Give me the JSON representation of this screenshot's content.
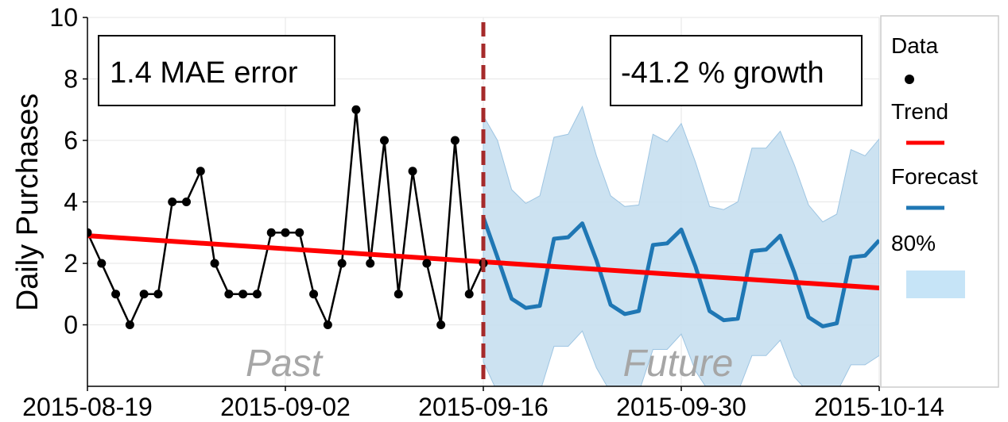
{
  "chart_data": {
    "type": "line",
    "ylabel": "Daily Purchases",
    "ylim": [
      -2,
      10
    ],
    "yticks": [
      "0",
      "2",
      "4",
      "6",
      "8",
      "10"
    ],
    "yticks_values": [
      0,
      2,
      4,
      6,
      8,
      10
    ],
    "xticks": [
      "2015-08-19",
      "2015-09-02",
      "2015-09-16",
      "2015-09-30",
      "2015-10-14"
    ],
    "xlim": [
      "2015-08-19",
      "2015-10-14"
    ],
    "grid": true,
    "annotations": {
      "mae": "1.4 MAE error",
      "growth": "-41.2 % growth",
      "past": "Past",
      "future": "Future"
    },
    "cutoff_date": "2015-09-16",
    "legend": {
      "placement": "right",
      "data": "Data",
      "trend": "Trend",
      "forecast": "Forecast",
      "interval": "80%"
    },
    "colors": {
      "data": "#000000",
      "trend": "#ff0000",
      "forecast": "#1f77b4",
      "interval": "#c6dff0",
      "cutoff": "#a52a2a"
    },
    "series": [
      {
        "name": "Data",
        "x": [
          "2015-08-19",
          "2015-08-20",
          "2015-08-21",
          "2015-08-22",
          "2015-08-23",
          "2015-08-24",
          "2015-08-25",
          "2015-08-26",
          "2015-08-27",
          "2015-08-28",
          "2015-08-29",
          "2015-08-30",
          "2015-08-31",
          "2015-09-01",
          "2015-09-02",
          "2015-09-03",
          "2015-09-04",
          "2015-09-05",
          "2015-09-06",
          "2015-09-07",
          "2015-09-08",
          "2015-09-09",
          "2015-09-10",
          "2015-09-11",
          "2015-09-12",
          "2015-09-13",
          "2015-09-14",
          "2015-09-15",
          "2015-09-16"
        ],
        "values": [
          3,
          2,
          1,
          0,
          1,
          1,
          4,
          4,
          5,
          2,
          1,
          1,
          1,
          3,
          3,
          3,
          1,
          0,
          2,
          7,
          2,
          6,
          1,
          5,
          2,
          0,
          6,
          1,
          2
        ]
      },
      {
        "name": "Trend",
        "x": [
          "2015-08-19",
          "2015-10-14"
        ],
        "values": [
          2.9,
          1.2
        ]
      },
      {
        "name": "Forecast",
        "x": [
          "2015-09-16",
          "2015-09-17",
          "2015-09-18",
          "2015-09-19",
          "2015-09-20",
          "2015-09-21",
          "2015-09-22",
          "2015-09-23",
          "2015-09-24",
          "2015-09-25",
          "2015-09-26",
          "2015-09-27",
          "2015-09-28",
          "2015-09-29",
          "2015-09-30",
          "2015-10-01",
          "2015-10-02",
          "2015-10-03",
          "2015-10-04",
          "2015-10-05",
          "2015-10-06",
          "2015-10-07",
          "2015-10-08",
          "2015-10-09",
          "2015-10-10",
          "2015-10-11",
          "2015-10-12",
          "2015-10-13",
          "2015-10-14"
        ],
        "values": [
          3.5,
          2.2,
          0.85,
          0.55,
          0.62,
          2.8,
          2.85,
          3.3,
          2.1,
          0.65,
          0.35,
          0.45,
          2.6,
          2.65,
          3.1,
          1.9,
          0.45,
          0.15,
          0.2,
          2.4,
          2.45,
          2.9,
          1.7,
          0.25,
          -0.05,
          0.05,
          2.2,
          2.25,
          2.75
        ],
        "lower": [
          -1.2,
          -2.2,
          -2.2,
          -2.2,
          -2.2,
          -0.7,
          -0.7,
          -0.2,
          -1.4,
          -2.2,
          -2.2,
          -2.2,
          -0.8,
          -0.8,
          -0.3,
          -1.5,
          -2.2,
          -2.2,
          -2.2,
          -1.0,
          -1.0,
          -0.5,
          -1.7,
          -2.2,
          -2.2,
          -2.2,
          -1.3,
          -1.3,
          -1.0
        ],
        "upper": [
          6.8,
          6.0,
          4.4,
          3.95,
          4.2,
          6.1,
          6.2,
          7.1,
          5.5,
          4.2,
          3.85,
          3.9,
          6.2,
          5.95,
          6.55,
          5.3,
          3.85,
          3.75,
          4.0,
          5.75,
          5.75,
          6.3,
          5.2,
          3.9,
          3.35,
          3.6,
          5.7,
          5.5,
          6.05
        ]
      }
    ]
  }
}
